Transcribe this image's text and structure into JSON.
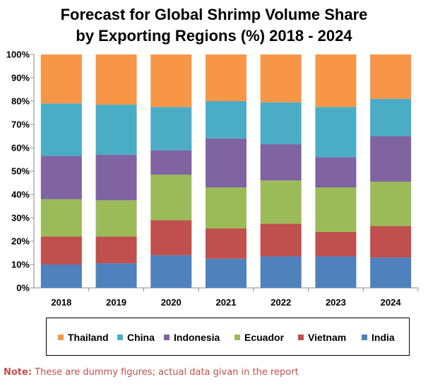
{
  "chart_data": {
    "type": "bar",
    "stacked": true,
    "title_lines": [
      "Forecast for Global Shrimp Volume Share",
      "by Exporting Regions (%) 2018 - 2024"
    ],
    "categories": [
      "2018",
      "2019",
      "2020",
      "2021",
      "2022",
      "2023",
      "2024"
    ],
    "ylim": [
      0,
      100
    ],
    "y_ticks": [
      "0%",
      "10%",
      "20%",
      "30%",
      "40%",
      "50%",
      "60%",
      "70%",
      "80%",
      "90%",
      "100%"
    ],
    "grid": false,
    "legend_position": "bottom",
    "series": [
      {
        "name": "India",
        "color": "#4f81bd",
        "values": [
          10,
          10.5,
          14,
          12.5,
          13.5,
          13.5,
          13
        ]
      },
      {
        "name": "Vietnam",
        "color": "#c0504d",
        "values": [
          12,
          11.5,
          15,
          13,
          14,
          10.5,
          13.5
        ]
      },
      {
        "name": "Ecuador",
        "color": "#9bbb59",
        "values": [
          16,
          15.5,
          19.5,
          17.5,
          18.5,
          19,
          19
        ]
      },
      {
        "name": "Indonesia",
        "color": "#8064a2",
        "values": [
          18.5,
          19.5,
          10.5,
          21,
          15.5,
          13,
          19.5
        ]
      },
      {
        "name": "China",
        "color": "#4bacc6",
        "values": [
          22.5,
          21.5,
          18.5,
          16,
          18,
          21.5,
          16
        ]
      },
      {
        "name": "Thailand",
        "color": "#f79646",
        "values": [
          21,
          21.5,
          22.5,
          20,
          20.5,
          22.5,
          19
        ]
      }
    ],
    "legend_order": [
      "Thailand",
      "China",
      "Indonesia",
      "Ecuador",
      "Vietnam",
      "India"
    ]
  },
  "note": {
    "label": "Note:",
    "text": " These are dummy figures; actual data givan in the report"
  }
}
